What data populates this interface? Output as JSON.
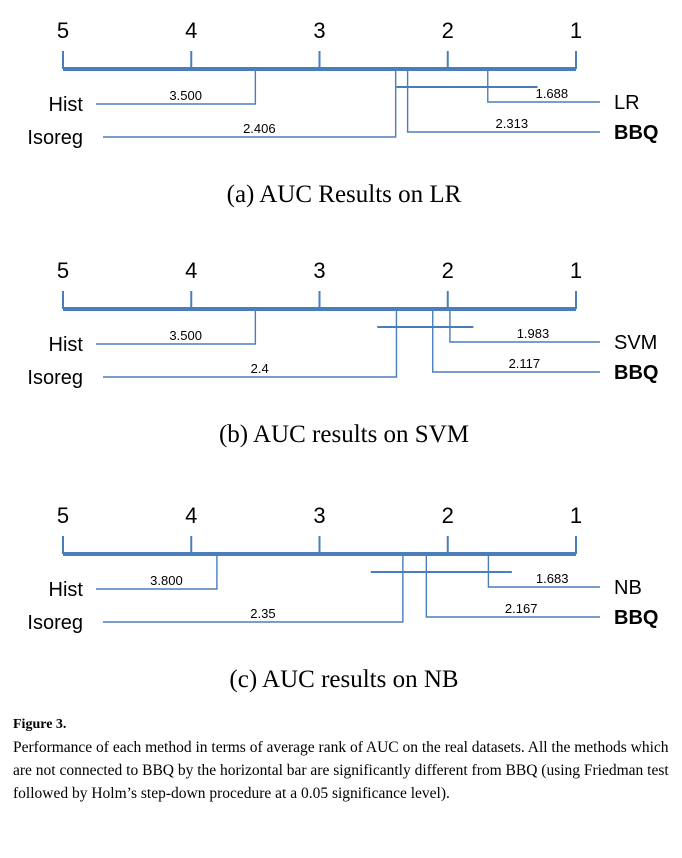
{
  "chart_data": [
    {
      "type": "critical-difference-diagram",
      "axis_ticks": [
        "5",
        "4",
        "3",
        "2",
        "1"
      ],
      "axis_range": [
        5,
        1
      ],
      "caption": "(a) AUC Results on LR",
      "methods": [
        {
          "name": "Hist",
          "rank": 3.5,
          "rank_label": "3.500",
          "side": "left",
          "bold": false
        },
        {
          "name": "Isoreg",
          "rank": 2.406,
          "rank_label": "2.406",
          "side": "left",
          "bold": false
        },
        {
          "name": "LR",
          "rank": 1.688,
          "rank_label": "1.688",
          "side": "right",
          "bold": false
        },
        {
          "name": "BBQ",
          "rank": 2.313,
          "rank_label": "2.313",
          "side": "right",
          "bold": true
        }
      ],
      "cd_bar": [
        2.4,
        1.3
      ]
    },
    {
      "type": "critical-difference-diagram",
      "axis_ticks": [
        "5",
        "4",
        "3",
        "2",
        "1"
      ],
      "axis_range": [
        5,
        1
      ],
      "caption": "(b) AUC results on SVM",
      "methods": [
        {
          "name": "Hist",
          "rank": 3.5,
          "rank_label": "3.500",
          "side": "left",
          "bold": false
        },
        {
          "name": "Isoreg",
          "rank": 2.4,
          "rank_label": "2.4",
          "side": "left",
          "bold": false
        },
        {
          "name": "SVM",
          "rank": 1.983,
          "rank_label": "1.983",
          "side": "right",
          "bold": false
        },
        {
          "name": "BBQ",
          "rank": 2.117,
          "rank_label": "2.117",
          "side": "right",
          "bold": true
        }
      ],
      "cd_bar": [
        2.55,
        1.8
      ]
    },
    {
      "type": "critical-difference-diagram",
      "axis_ticks": [
        "5",
        "4",
        "3",
        "2",
        "1"
      ],
      "axis_range": [
        5,
        1
      ],
      "caption": "(c) AUC results on NB",
      "methods": [
        {
          "name": "Hist",
          "rank": 3.8,
          "rank_label": "3.800",
          "side": "left",
          "bold": false
        },
        {
          "name": "Isoreg",
          "rank": 2.35,
          "rank_label": "2.35",
          "side": "left",
          "bold": false
        },
        {
          "name": "NB",
          "rank": 1.683,
          "rank_label": "1.683",
          "side": "right",
          "bold": false
        },
        {
          "name": "BBQ",
          "rank": 2.167,
          "rank_label": "2.167",
          "side": "right",
          "bold": true
        }
      ],
      "cd_bar": [
        2.6,
        1.5
      ]
    }
  ],
  "figure": {
    "label": "Figure 3.",
    "text": "Performance of each method in terms of average rank of AUC on the real datasets. All the methods which are not connected to BBQ by the horizontal bar are significantly different from BBQ (using Friedman test followed by Holm’s step-down procedure at a 0.05 significance level)."
  }
}
